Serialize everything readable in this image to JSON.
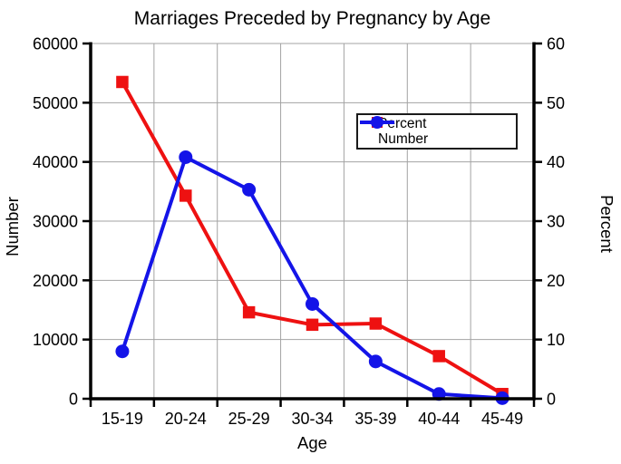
{
  "figure": {
    "title": "Marriages Preceded by Pregnancy by Age"
  },
  "chart_data": {
    "type": "line",
    "title": "Marriages Preceded by Pregnancy by Age",
    "xlabel": "Age",
    "categories": [
      "15-19",
      "20-24",
      "25-29",
      "30-34",
      "35-39",
      "40-44",
      "45-49"
    ],
    "series": [
      {
        "name": "Percent",
        "axis": "right",
        "color": "#ee1111",
        "marker": "square",
        "values": [
          53.5,
          34.3,
          14.6,
          12.5,
          12.7,
          7.2,
          0.8
        ]
      },
      {
        "name": "Number",
        "axis": "left",
        "color": "#1414e8",
        "marker": "circle",
        "values": [
          8000,
          40800,
          35300,
          16000,
          6300,
          800,
          100
        ]
      }
    ],
    "left_axis": {
      "label": "Number",
      "min": 0,
      "max": 60000,
      "ticks": [
        0,
        10000,
        20000,
        30000,
        40000,
        50000,
        60000
      ]
    },
    "right_axis": {
      "label": "Percent",
      "min": 0,
      "max": 60,
      "ticks": [
        0,
        10,
        20,
        30,
        40,
        50,
        60
      ]
    },
    "grid": true,
    "legend": {
      "position": "inside-top-center",
      "entries": [
        "Percent",
        "Number"
      ]
    },
    "colors": {
      "grid": "#a3a3a3",
      "axis": "#000000",
      "text": "#000000",
      "background": "#ffffff"
    }
  }
}
